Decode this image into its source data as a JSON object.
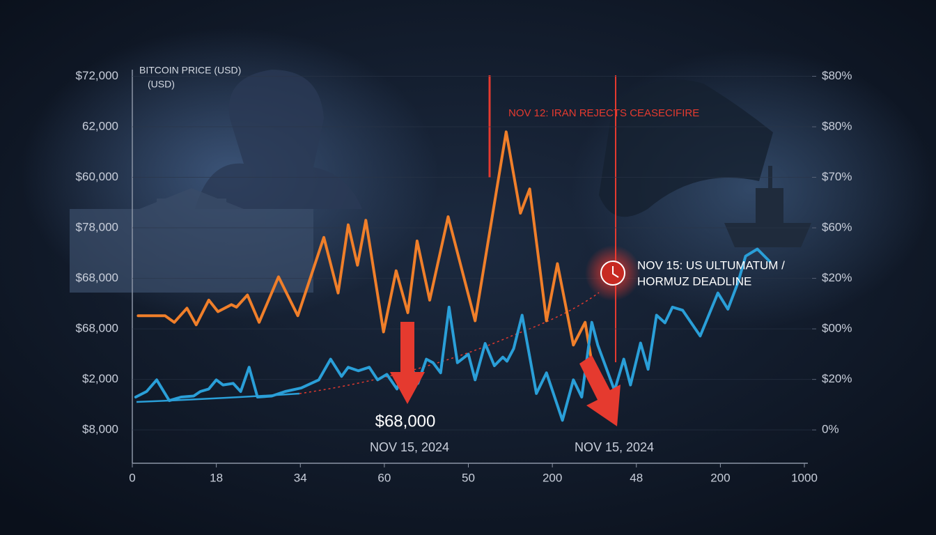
{
  "chart_data": {
    "type": "line",
    "title": "BITCOIN PRICE (USD)",
    "subtitle": "(USD)",
    "annotations": [
      "NOV 12: IRAN REJECTS CEASECIFIRE",
      "NOV 15: US ULTUMATUM /",
      "HORMUZ DEADLINE",
      "$68,000",
      "NOV 15, 2024",
      "NOV 15, 2024"
    ],
    "xlim": [
      0,
      8
    ],
    "xticks": [
      0,
      {
        "value": 1,
        "label": "18"
      },
      {
        "value": 2,
        "label": "34"
      },
      {
        "value": 3,
        "label": "60"
      },
      {
        "value": 4,
        "label": "50"
      },
      {
        "value": 5,
        "label": "200"
      },
      {
        "value": 6,
        "label": "48"
      },
      {
        "value": 7,
        "label": "200"
      },
      {
        "value": 8,
        "label": "1000"
      }
    ],
    "ylim": [
      -0.66,
      7.2
    ],
    "yticks": [
      {
        "value": 7,
        "label": "$72,000"
      },
      {
        "value": 6,
        "label": "62,000"
      },
      {
        "value": 5,
        "label": "$60,000"
      },
      {
        "value": 4,
        "label": "$78,000"
      },
      {
        "value": 3,
        "label": "$68,000"
      },
      {
        "value": 2,
        "label": "$68,000"
      },
      {
        "value": 1,
        "label": "$2,000"
      },
      {
        "value": 0,
        "label": "$8,000"
      }
    ],
    "y2lim": [
      -0.66,
      7.2
    ],
    "y2ticks": [
      {
        "value": 7,
        "label": "$80%"
      },
      {
        "value": 6,
        "label": "$80%"
      },
      {
        "value": 5,
        "label": "$70%"
      },
      {
        "value": 4,
        "label": "$60%"
      },
      {
        "value": 3,
        "label": "$20%"
      },
      {
        "value": 2,
        "label": "$00%"
      },
      {
        "value": 1,
        "label": "$20%"
      },
      {
        "value": 0,
        "label": "0%"
      }
    ],
    "grid": true,
    "series": [
      {
        "color": "#f07f2a",
        "x": [
          0.07,
          0.39,
          0.5,
          0.65,
          0.76,
          0.91,
          1.02,
          1.18,
          1.24,
          1.37,
          1.51,
          1.74,
          1.97,
          2.28,
          2.45,
          2.57,
          2.68,
          2.78,
          2.99,
          3.14,
          3.28,
          3.39,
          3.54,
          3.76,
          4.08,
          4.23,
          4.45,
          4.62,
          4.73,
          4.93,
          5.06,
          5.25,
          5.39,
          5.47
        ],
        "values": [
          2.26,
          2.26,
          2.13,
          2.41,
          2.08,
          2.57,
          2.34,
          2.48,
          2.43,
          2.67,
          2.13,
          3.03,
          2.26,
          3.81,
          2.71,
          4.06,
          3.26,
          4.15,
          1.94,
          3.15,
          2.32,
          3.74,
          2.57,
          4.22,
          2.16,
          3.67,
          5.9,
          4.29,
          4.77,
          2.16,
          3.29,
          1.68,
          2.13,
          1.33
        ]
      },
      {
        "color": "#2a9fd8",
        "x": [
          0.04,
          0.17,
          0.29,
          0.44,
          0.58,
          0.73,
          0.81,
          0.91,
          1.0,
          1.08,
          1.2,
          1.29,
          1.39,
          1.49,
          1.66,
          1.82,
          2.01,
          2.22,
          2.36,
          2.49,
          2.57,
          2.69,
          2.82,
          2.92,
          3.03,
          3.15,
          3.28,
          3.4,
          3.5,
          3.58,
          3.67,
          3.77,
          3.87,
          4.0,
          4.08,
          4.2,
          4.31,
          4.41,
          4.46,
          4.54,
          4.64,
          4.81,
          4.93,
          5.12,
          5.25,
          5.35,
          5.47,
          5.54,
          5.74,
          5.85,
          5.93,
          6.05,
          6.14,
          6.24,
          6.34,
          6.43,
          6.55,
          6.76,
          6.97,
          7.09,
          7.21,
          7.3,
          7.44,
          7.59
        ],
        "values": [
          0.65,
          0.76,
          0.99,
          0.58,
          0.65,
          0.67,
          0.76,
          0.81,
          0.99,
          0.89,
          0.92,
          0.76,
          1.24,
          0.65,
          0.67,
          0.76,
          0.83,
          0.99,
          1.4,
          1.06,
          1.24,
          1.17,
          1.24,
          0.99,
          1.1,
          0.81,
          1.44,
          0.92,
          1.4,
          1.33,
          1.13,
          2.43,
          1.33,
          1.5,
          0.99,
          1.71,
          1.27,
          1.44,
          1.36,
          1.61,
          2.27,
          0.72,
          1.13,
          0.19,
          0.99,
          0.65,
          2.13,
          1.68,
          0.78,
          1.4,
          0.89,
          1.72,
          1.2,
          2.27,
          2.12,
          2.43,
          2.37,
          1.86,
          2.71,
          2.39,
          2.92,
          3.44,
          3.58,
          3.33
        ]
      }
    ]
  }
}
